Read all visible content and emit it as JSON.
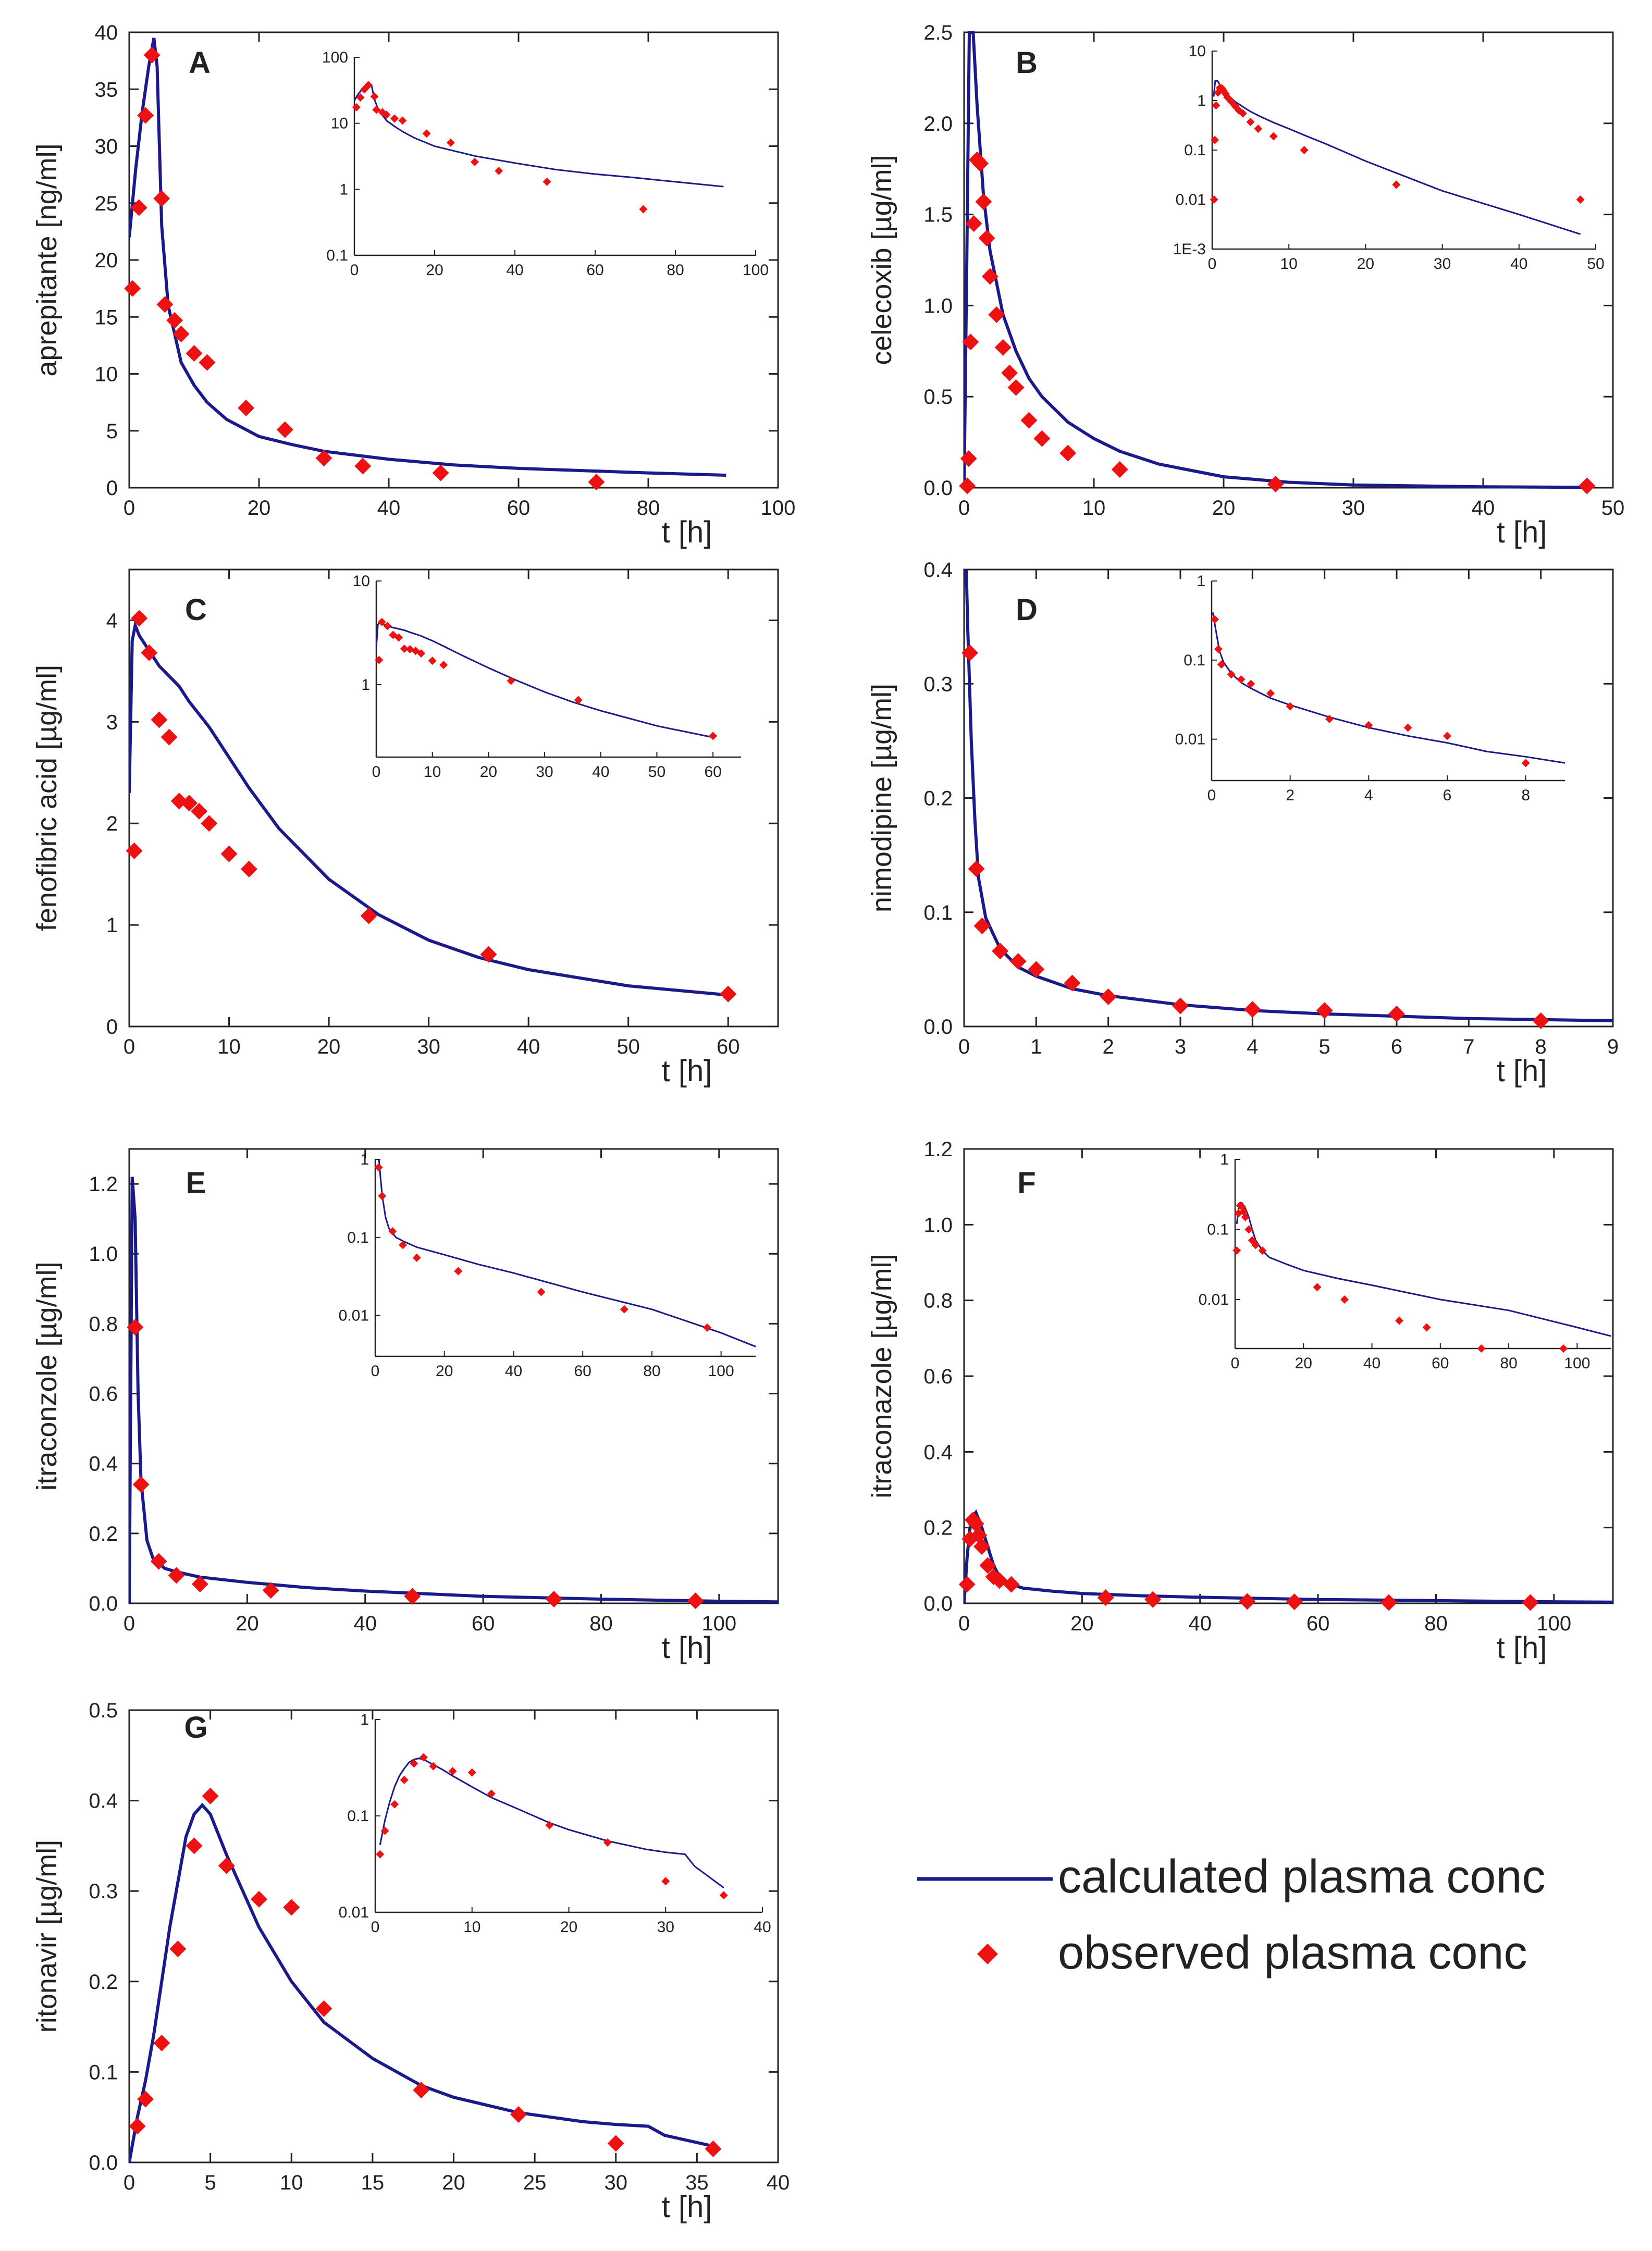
{
  "figure": {
    "legend": {
      "line_label": "calculated plasma conc",
      "marker_label": "observed plasma conc",
      "line_color": "#1a1a8c",
      "marker_color": "#ee1111"
    }
  },
  "chart_data": [
    {
      "id": "A",
      "type": "line",
      "title": "A",
      "ylabel": "aprepitante [ng/ml]",
      "xlabel": "t [h]",
      "xlim": [
        0,
        100
      ],
      "ylim": [
        0,
        40
      ],
      "xticks": [
        0,
        20,
        40,
        60,
        80,
        100
      ],
      "yticks": [
        0,
        5,
        10,
        15,
        20,
        25,
        30,
        35,
        40
      ],
      "series": [
        {
          "name": "calculated plasma conc",
          "x": [
            0,
            0.5,
            1,
            2,
            3,
            3.8,
            4.3,
            5,
            6,
            8,
            10,
            12,
            15,
            20,
            25,
            30,
            40,
            50,
            60,
            70,
            80,
            92
          ],
          "y": [
            22,
            25,
            28,
            33,
            37,
            39.5,
            37,
            23,
            16,
            11,
            9,
            7.5,
            6,
            4.5,
            3.8,
            3.2,
            2.5,
            2.0,
            1.7,
            1.5,
            1.3,
            1.1
          ]
        },
        {
          "name": "observed plasma conc",
          "x": [
            0.5,
            1.5,
            2.5,
            3.5,
            5,
            5.5,
            7,
            8,
            10,
            12,
            18,
            24,
            30,
            36,
            48,
            72
          ],
          "y": [
            17.5,
            24.6,
            32.7,
            38,
            25.4,
            16.1,
            14.7,
            13.5,
            11.8,
            11.0,
            7.0,
            5.1,
            2.6,
            1.9,
            1.3,
            0.5
          ]
        }
      ],
      "inset": {
        "scale": "log",
        "xlim": [
          0,
          100
        ],
        "ylim": [
          0.1,
          100
        ],
        "xticks": [
          0,
          20,
          40,
          60,
          80,
          100
        ],
        "yticks": [
          0.1,
          1,
          10,
          100
        ],
        "yticklabels": [
          "0.1",
          "1",
          "10",
          "100"
        ]
      }
    },
    {
      "id": "B",
      "type": "line",
      "title": "B",
      "ylabel": "celecoxib [µg/ml]",
      "xlabel": "t [h]",
      "xlim": [
        0,
        50
      ],
      "ylim": [
        0,
        2.5
      ],
      "xticks": [
        0,
        10,
        20,
        30,
        40,
        50
      ],
      "yticks": [
        0.0,
        0.5,
        1.0,
        1.5,
        2.0,
        2.5
      ],
      "yticklabels": [
        "0.0",
        "0.5",
        "1.0",
        "1.5",
        "2.0",
        "2.5"
      ],
      "series": [
        {
          "name": "calculated plasma conc",
          "x": [
            0,
            0.2,
            0.4,
            0.7,
            1,
            1.5,
            2,
            3,
            4,
            5,
            6,
            8,
            10,
            12,
            15,
            20,
            25,
            30,
            40,
            48
          ],
          "y": [
            0,
            1.2,
            2.5,
            2.5,
            2.1,
            1.6,
            1.3,
            0.95,
            0.75,
            0.6,
            0.5,
            0.36,
            0.27,
            0.2,
            0.13,
            0.06,
            0.03,
            0.015,
            0.005,
            0.002
          ]
        },
        {
          "name": "observed plasma conc",
          "x": [
            0.25,
            0.35,
            0.5,
            0.75,
            1,
            1.25,
            1.5,
            1.75,
            2,
            2.5,
            3,
            3.5,
            4,
            5,
            6,
            8,
            12,
            24,
            48
          ],
          "y": [
            0.01,
            0.16,
            0.8,
            1.45,
            1.8,
            1.78,
            1.57,
            1.37,
            1.16,
            0.95,
            0.77,
            0.63,
            0.55,
            0.37,
            0.27,
            0.19,
            0.1,
            0.02,
            0.01
          ]
        }
      ],
      "inset": {
        "scale": "log",
        "xlim": [
          0,
          50
        ],
        "ylim": [
          0.001,
          10
        ],
        "xticks": [
          0,
          10,
          20,
          30,
          40,
          50
        ],
        "yticks": [
          0.001,
          0.01,
          0.1,
          1,
          10
        ],
        "yticklabels": [
          "1E-3",
          "0.01",
          "0.1",
          "1",
          "10"
        ]
      }
    },
    {
      "id": "C",
      "type": "line",
      "title": "C",
      "ylabel": "fenofibric acid [µg/ml]",
      "xlabel": "t [h]",
      "xlim": [
        0,
        65
      ],
      "ylim": [
        0,
        4.5
      ],
      "xticks": [
        0,
        10,
        20,
        30,
        40,
        50,
        60
      ],
      "yticks": [
        0,
        1,
        2,
        3,
        4
      ],
      "series": [
        {
          "name": "calculated plasma conc",
          "x": [
            0,
            0.3,
            0.6,
            1,
            2,
            3,
            4,
            5,
            6,
            8,
            10,
            12,
            15,
            20,
            25,
            30,
            35,
            40,
            50,
            60
          ],
          "y": [
            2.3,
            3.8,
            3.95,
            3.85,
            3.7,
            3.55,
            3.45,
            3.35,
            3.2,
            2.95,
            2.65,
            2.35,
            1.95,
            1.45,
            1.1,
            0.85,
            0.68,
            0.56,
            0.4,
            0.31
          ]
        },
        {
          "name": "observed plasma conc",
          "x": [
            0.5,
            1,
            2,
            3,
            4,
            5,
            6,
            7,
            8,
            10,
            12,
            24,
            36,
            60
          ],
          "y": [
            1.73,
            4.02,
            3.68,
            3.02,
            2.85,
            2.22,
            2.2,
            2.12,
            2.0,
            1.7,
            1.55,
            1.09,
            0.71,
            0.32
          ]
        }
      ],
      "inset": {
        "scale": "log",
        "xlim": [
          0,
          65
        ],
        "ylim": [
          0.2,
          10
        ],
        "xticks": [
          0,
          10,
          20,
          30,
          40,
          50,
          60
        ],
        "yticks": [
          1,
          10
        ],
        "yticklabels": [
          "1",
          "10"
        ]
      }
    },
    {
      "id": "D",
      "type": "line",
      "title": "D",
      "ylabel": "nimodipine [µg/ml]",
      "xlabel": "t [h]",
      "xlim": [
        0,
        9
      ],
      "ylim": [
        0,
        0.4
      ],
      "xticks": [
        0,
        1,
        2,
        3,
        4,
        5,
        6,
        7,
        8,
        9
      ],
      "yticks": [
        0.0,
        0.1,
        0.2,
        0.3,
        0.4
      ],
      "yticklabels": [
        "0.0",
        "0.1",
        "0.2",
        "0.3",
        "0.4"
      ],
      "series": [
        {
          "name": "calculated plasma conc",
          "x": [
            0.03,
            0.05,
            0.1,
            0.15,
            0.2,
            0.3,
            0.5,
            0.75,
            1,
            1.5,
            2,
            3,
            4,
            5,
            6,
            7,
            8,
            9
          ],
          "y": [
            0.4,
            0.35,
            0.25,
            0.18,
            0.13,
            0.095,
            0.068,
            0.052,
            0.044,
            0.033,
            0.027,
            0.019,
            0.014,
            0.011,
            0.009,
            0.007,
            0.006,
            0.005
          ]
        },
        {
          "name": "observed plasma conc",
          "x": [
            0.08,
            0.17,
            0.25,
            0.5,
            0.75,
            1,
            1.5,
            2,
            3,
            4,
            5,
            6,
            8
          ],
          "y": [
            0.327,
            0.138,
            0.088,
            0.066,
            0.057,
            0.05,
            0.038,
            0.026,
            0.018,
            0.015,
            0.014,
            0.011,
            0.005
          ]
        }
      ],
      "inset": {
        "scale": "log",
        "xlim": [
          0,
          9
        ],
        "ylim": [
          0.003,
          1
        ],
        "xticks": [
          0,
          2,
          4,
          6,
          8
        ],
        "yticks": [
          0.01,
          0.1,
          1
        ],
        "yticklabels": [
          "0.01",
          "0.1",
          "1"
        ]
      }
    },
    {
      "id": "E",
      "type": "line",
      "title": "E",
      "ylabel": "itraconzole [µg/ml]",
      "xlabel": "t [h]",
      "xlim": [
        0,
        110
      ],
      "ylim": [
        0,
        1.3
      ],
      "xticks": [
        0,
        20,
        40,
        60,
        80,
        100
      ],
      "yticks": [
        0.0,
        0.2,
        0.4,
        0.6,
        0.8,
        1.0,
        1.2
      ],
      "yticklabels": [
        "0.0",
        "0.2",
        "0.4",
        "0.6",
        "0.8",
        "1.0",
        "1.2"
      ],
      "series": [
        {
          "name": "calculated plasma conc",
          "x": [
            0,
            0.5,
            1,
            1.5,
            2,
            3,
            4,
            6,
            8,
            12,
            20,
            30,
            40,
            60,
            80,
            100,
            110
          ],
          "y": [
            0,
            1.22,
            1.1,
            0.6,
            0.35,
            0.18,
            0.13,
            0.1,
            0.09,
            0.075,
            0.06,
            0.045,
            0.035,
            0.02,
            0.012,
            0.006,
            0.004
          ]
        },
        {
          "name": "observed plasma conc",
          "x": [
            1,
            2,
            5,
            8,
            12,
            24,
            48,
            72,
            96
          ],
          "y": [
            0.79,
            0.34,
            0.12,
            0.08,
            0.055,
            0.037,
            0.02,
            0.012,
            0.007
          ]
        }
      ],
      "inset": {
        "scale": "log",
        "xlim": [
          0,
          110
        ],
        "ylim": [
          0.003,
          1
        ],
        "xticks": [
          0,
          20,
          40,
          60,
          80,
          100
        ],
        "yticks": [
          0.01,
          0.1,
          1
        ],
        "yticklabels": [
          "0.01",
          "0.1",
          "1"
        ]
      }
    },
    {
      "id": "F",
      "type": "line",
      "title": "F",
      "ylabel": "itraconazole [µg/ml]",
      "xlabel": "t [h]",
      "xlim": [
        0,
        110
      ],
      "ylim": [
        0,
        1.2
      ],
      "xticks": [
        0,
        20,
        40,
        60,
        80,
        100
      ],
      "yticks": [
        0.0,
        0.2,
        0.4,
        0.6,
        0.8,
        1.0,
        1.2
      ],
      "yticklabels": [
        "0.0",
        "0.2",
        "0.4",
        "0.6",
        "0.8",
        "1.0",
        "1.2"
      ],
      "series": [
        {
          "name": "calculated plasma conc",
          "x": [
            0,
            0.5,
            1,
            1.5,
            2,
            3,
            4,
            5,
            6,
            8,
            10,
            15,
            20,
            30,
            40,
            60,
            80,
            100,
            110
          ],
          "y": [
            0,
            0.12,
            0.2,
            0.23,
            0.24,
            0.2,
            0.15,
            0.1,
            0.07,
            0.05,
            0.04,
            0.032,
            0.026,
            0.02,
            0.016,
            0.01,
            0.007,
            0.004,
            0.003
          ]
        },
        {
          "name": "observed plasma conc",
          "x": [
            0.5,
            1,
            1.5,
            2,
            2.5,
            3,
            4,
            5,
            6,
            8,
            24,
            32,
            48,
            56,
            72,
            96
          ],
          "y": [
            0.05,
            0.17,
            0.22,
            0.21,
            0.18,
            0.15,
            0.1,
            0.07,
            0.06,
            0.05,
            0.015,
            0.01,
            0.005,
            0.004,
            0.002,
            0.002
          ]
        }
      ],
      "inset": {
        "scale": "log",
        "xlim": [
          0,
          110
        ],
        "ylim": [
          0.002,
          1
        ],
        "xticks": [
          0,
          20,
          40,
          60,
          80,
          100
        ],
        "yticks": [
          0.01,
          0.1,
          1
        ],
        "yticklabels": [
          "0.01",
          "0.1",
          "1"
        ]
      }
    },
    {
      "id": "G",
      "type": "line",
      "title": "G",
      "ylabel": "ritonavir [µg/ml]",
      "xlabel": "t [h]",
      "xlim": [
        0,
        40
      ],
      "ylim": [
        0,
        0.5
      ],
      "xticks": [
        0,
        5,
        10,
        15,
        20,
        25,
        30,
        35,
        40
      ],
      "yticks": [
        0.0,
        0.1,
        0.2,
        0.3,
        0.4,
        0.5
      ],
      "yticklabels": [
        "0.0",
        "0.1",
        "0.2",
        "0.3",
        "0.4",
        "0.5"
      ],
      "series": [
        {
          "name": "calculated plasma conc",
          "x": [
            0,
            0.5,
            1,
            1.5,
            2,
            2.5,
            3,
            3.5,
            4,
            4.5,
            5,
            6,
            7,
            8,
            10,
            12,
            15,
            18,
            20,
            24,
            28,
            30,
            32,
            33,
            36
          ],
          "y": [
            0,
            0.05,
            0.09,
            0.14,
            0.2,
            0.26,
            0.31,
            0.36,
            0.385,
            0.395,
            0.385,
            0.34,
            0.3,
            0.26,
            0.2,
            0.155,
            0.115,
            0.085,
            0.072,
            0.055,
            0.045,
            0.042,
            0.04,
            0.03,
            0.018
          ]
        },
        {
          "name": "observed plasma conc",
          "x": [
            0.5,
            1,
            2,
            3,
            4,
            5,
            6,
            8,
            10,
            12,
            18,
            24,
            30,
            36
          ],
          "y": [
            0.04,
            0.07,
            0.132,
            0.236,
            0.35,
            0.405,
            0.328,
            0.291,
            0.282,
            0.17,
            0.08,
            0.053,
            0.021,
            0.015
          ]
        }
      ],
      "inset": {
        "scale": "log",
        "xlim": [
          0,
          40
        ],
        "ylim": [
          0.01,
          1
        ],
        "xticks": [
          0,
          10,
          20,
          30,
          40
        ],
        "yticks": [
          0.01,
          0.1,
          1
        ],
        "yticklabels": [
          "0.01",
          "0.1",
          "1"
        ]
      }
    }
  ]
}
